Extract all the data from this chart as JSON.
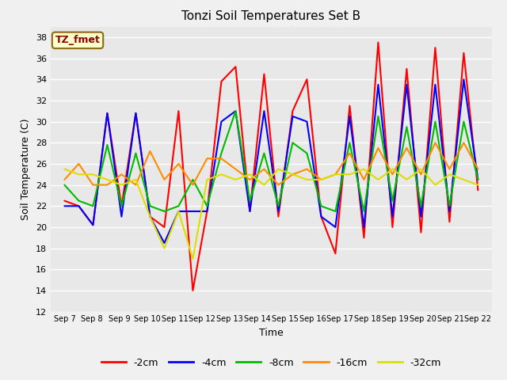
{
  "title": "Tonzi Soil Temperatures Set B",
  "xlabel": "Time",
  "ylabel": "Soil Temperature (C)",
  "ylim": [
    12,
    39
  ],
  "x_tick_labels": [
    "Sep 7",
    "Sep 8",
    "Sep 9",
    "Sep 10",
    "Sep 11",
    "Sep 12",
    "Sep 13",
    "Sep 14",
    "Sep 15",
    "Sep 16",
    "Sep 17",
    "Sep 18",
    "Sep 19",
    "Sep 20",
    "Sep 21",
    "Sep 22"
  ],
  "annotation_text": "TZ_fmet",
  "annotation_color": "#8B0000",
  "annotation_bg": "#FFFFCC",
  "annotation_border": "#8B6914",
  "series": {
    "2cm": {
      "label": "-2cm",
      "color": "#FF0000",
      "values": [
        22.5,
        22.0,
        20.2,
        30.8,
        22.0,
        30.8,
        21.0,
        20.0,
        31.0,
        14.0,
        21.5,
        33.8,
        35.2,
        21.5,
        34.5,
        21.0,
        31.0,
        34.0,
        21.0,
        17.5,
        31.5,
        19.0,
        37.5,
        20.0,
        35.0,
        19.5,
        37.0,
        20.5,
        36.5,
        23.5
      ]
    },
    "4cm": {
      "label": "-4cm",
      "color": "#0000FF",
      "values": [
        22.0,
        22.0,
        20.2,
        30.8,
        21.0,
        30.8,
        21.0,
        18.5,
        21.5,
        21.5,
        21.5,
        30.0,
        31.0,
        21.5,
        31.0,
        21.5,
        30.5,
        30.0,
        21.0,
        20.0,
        30.5,
        20.0,
        33.5,
        21.0,
        33.5,
        21.0,
        33.5,
        21.5,
        34.0,
        24.5
      ]
    },
    "8cm": {
      "label": "-8cm",
      "color": "#00BB00",
      "values": [
        24.0,
        22.5,
        22.0,
        27.8,
        22.0,
        27.0,
        22.0,
        21.5,
        22.0,
        24.5,
        22.0,
        27.0,
        31.0,
        22.5,
        27.0,
        22.0,
        28.0,
        27.0,
        22.0,
        21.5,
        28.0,
        21.5,
        30.5,
        22.5,
        29.5,
        22.0,
        30.0,
        22.0,
        30.0,
        24.5
      ]
    },
    "16cm": {
      "label": "-16cm",
      "color": "#FF8C00",
      "values": [
        24.5,
        26.0,
        24.0,
        24.0,
        25.0,
        24.0,
        27.2,
        24.5,
        26.0,
        24.0,
        26.5,
        26.5,
        25.5,
        24.5,
        25.5,
        24.0,
        25.0,
        25.5,
        24.5,
        25.0,
        27.0,
        24.5,
        27.5,
        25.0,
        27.5,
        25.0,
        28.0,
        25.5,
        28.0,
        25.5
      ]
    },
    "32cm": {
      "label": "-32cm",
      "color": "#DDDD00",
      "values": [
        25.5,
        25.0,
        25.0,
        24.5,
        24.0,
        24.5,
        21.0,
        18.0,
        21.5,
        17.0,
        24.5,
        25.0,
        24.5,
        25.0,
        24.0,
        25.5,
        25.0,
        24.5,
        24.5,
        25.0,
        25.0,
        25.5,
        24.5,
        25.5,
        24.5,
        25.5,
        24.0,
        25.0,
        24.5,
        24.0
      ]
    }
  },
  "bg_color": "#E8E8E8",
  "fig_bg": "#F0F0F0",
  "grid_color": "#FFFFFF",
  "linewidth": 1.5
}
